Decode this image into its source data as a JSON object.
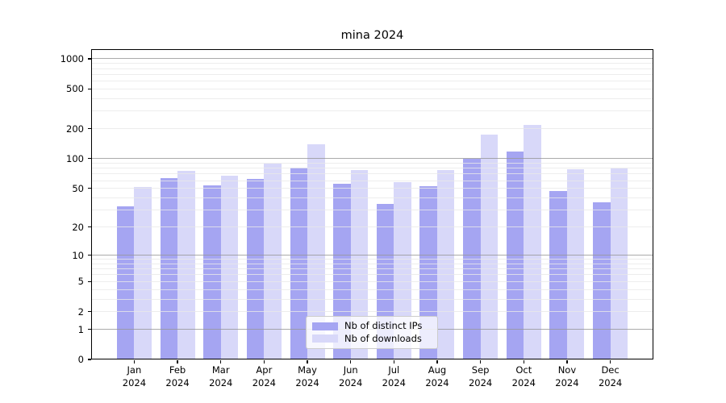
{
  "title": "mina 2024",
  "chart_data": {
    "type": "bar",
    "title": "mina 2024",
    "categories": [
      "Jan 2024",
      "Feb 2024",
      "Mar 2024",
      "Apr 2024",
      "May 2024",
      "Jun 2024",
      "Jul 2024",
      "Aug 2024",
      "Sep 2024",
      "Oct 2024",
      "Nov 2024",
      "Dec 2024"
    ],
    "series": [
      {
        "name": "Nb of distinct IPs",
        "color": "#a5a5f2",
        "values": [
          33,
          63,
          54,
          62,
          81,
          56,
          35,
          53,
          100,
          117,
          47,
          36
        ]
      },
      {
        "name": "Nb of downloads",
        "color": "#d8d8f9",
        "values": [
          52,
          75,
          67,
          89,
          140,
          76,
          58,
          76,
          175,
          220,
          78,
          80
        ]
      }
    ],
    "yscale": "log1p",
    "y_ticks": [
      0,
      1,
      2,
      5,
      10,
      20,
      50,
      100,
      200,
      500,
      1000
    ],
    "y_minor_gridlines": [
      2,
      3,
      4,
      5,
      6,
      7,
      8,
      9,
      20,
      30,
      40,
      50,
      60,
      70,
      80,
      90,
      200,
      300,
      400,
      500,
      600,
      700,
      800,
      900
    ],
    "y_major_gridlines": [
      1,
      10,
      100,
      1000
    ],
    "ylim": [
      0,
      1249
    ],
    "xlabel": "",
    "ylabel": "",
    "grid": "major+minor",
    "legend_position": "lower center",
    "colors": {
      "background": "#ffffff",
      "axis": "#000000",
      "major_grid": "rgba(150,150,150,0.8)",
      "minor_grid": "rgba(233,233,233,0.8)",
      "text": "#000000"
    }
  }
}
